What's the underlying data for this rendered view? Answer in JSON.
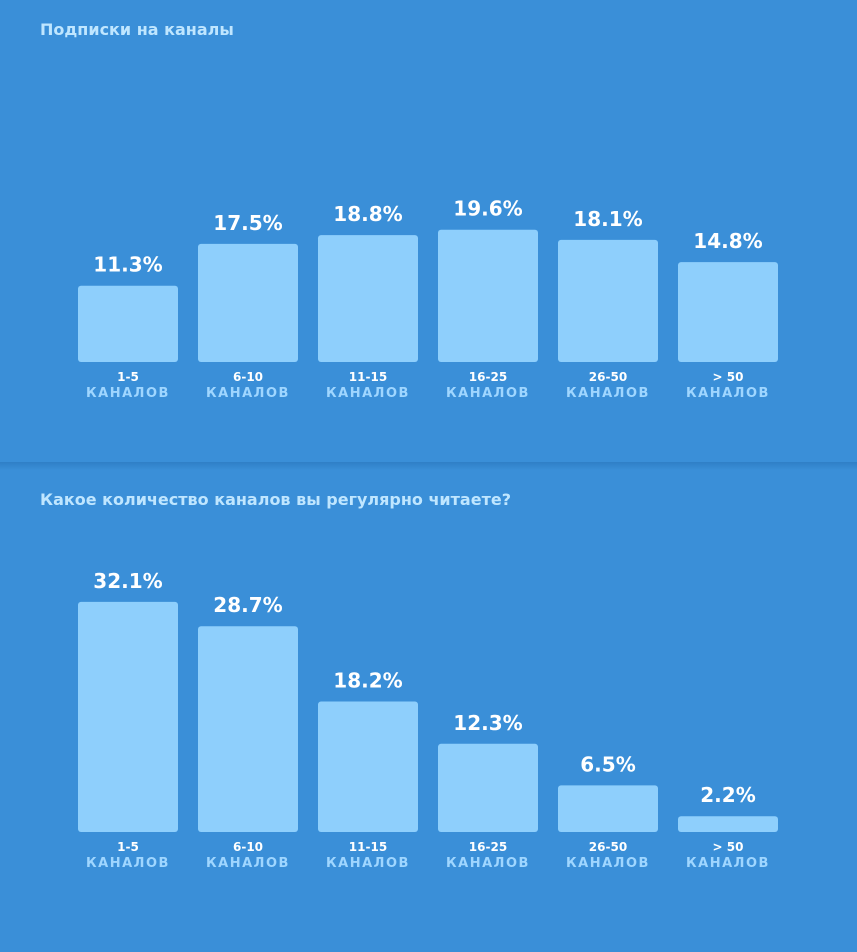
{
  "chart_data": [
    {
      "type": "bar",
      "title": "Подписки на каналы",
      "categories": [
        {
          "range": "1-5",
          "word": "КАНАЛОВ"
        },
        {
          "range": "6-10",
          "word": "КАНАЛОВ"
        },
        {
          "range": "11-15",
          "word": "КАНАЛОВ"
        },
        {
          "range": "16-25",
          "word": "КАНАЛОВ"
        },
        {
          "range": "26-50",
          "word": "КАНАЛОВ"
        },
        {
          "range": "> 50",
          "word": "КАНАЛОВ"
        }
      ],
      "values": [
        11.3,
        17.5,
        18.8,
        19.6,
        18.1,
        14.8
      ],
      "value_labels": [
        "11.3%",
        "17.5%",
        "18.8%",
        "19.6%",
        "18.1%",
        "14.8%"
      ],
      "grid": false,
      "legend": "none",
      "colors": {
        "bar": "#8ecffc",
        "background": "#3a8fd8",
        "title": "#bfe6ff",
        "label": "#ffffff"
      }
    },
    {
      "type": "bar",
      "title": "Какое количество каналов вы регулярно читаете?",
      "categories": [
        {
          "range": "1-5",
          "word": "КАНАЛОВ"
        },
        {
          "range": "6-10",
          "word": "КАНАЛОВ"
        },
        {
          "range": "11-15",
          "word": "КАНАЛОВ"
        },
        {
          "range": "16-25",
          "word": "КАНАЛОВ"
        },
        {
          "range": "26-50",
          "word": "КАНАЛОВ"
        },
        {
          "range": "> 50",
          "word": "КАНАЛОВ"
        }
      ],
      "values": [
        32.1,
        28.7,
        18.2,
        12.3,
        6.5,
        2.2
      ],
      "value_labels": [
        "32.1%",
        "28.7%",
        "18.2%",
        "12.3%",
        "6.5%",
        "2.2%"
      ],
      "grid": false,
      "legend": "none",
      "colors": {
        "bar": "#8ecffc",
        "background": "#3a8fd8",
        "title": "#bfe6ff",
        "label": "#ffffff"
      }
    }
  ]
}
